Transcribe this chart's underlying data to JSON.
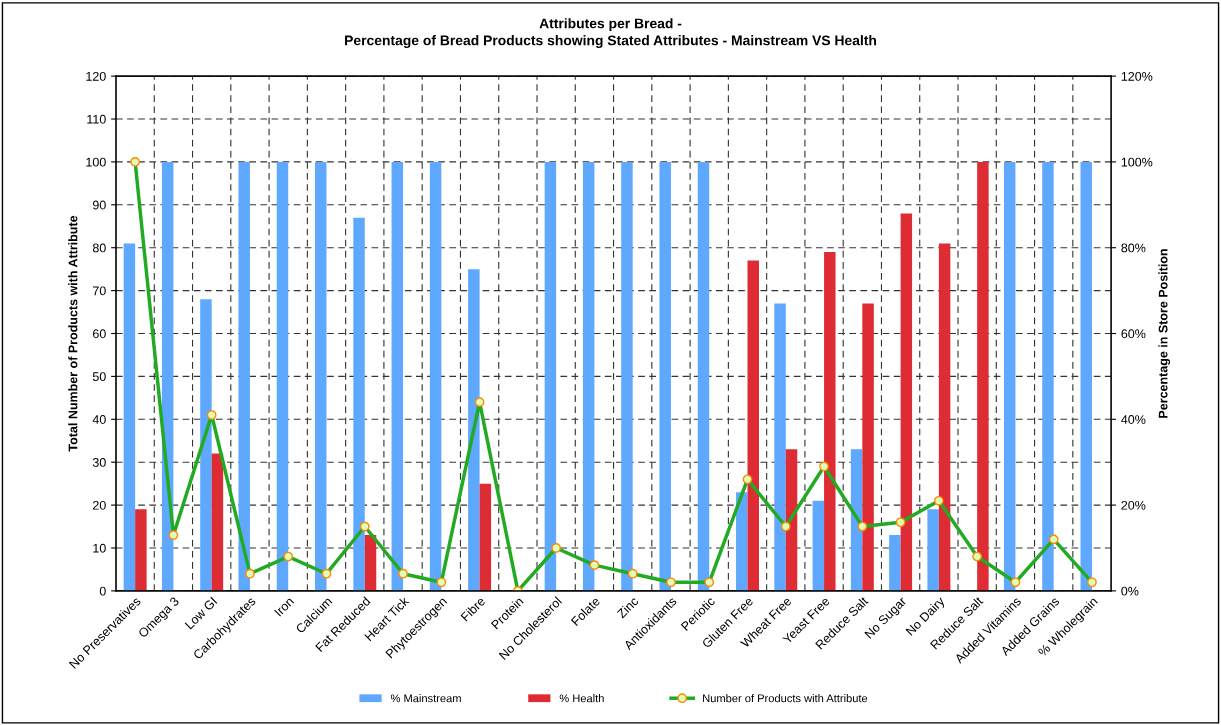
{
  "chart_data": {
    "type": "bar",
    "title": "Attributes per Bread -\nPercentage of Bread Products showing Stated Attributes - Mainstream VS Health",
    "ylabel": "Total Number of Products with Attribute",
    "y2label": "Percentage in Store Position",
    "categories": [
      "No Preservatives",
      "Omega 3",
      "Low GI",
      "Carbohydrates",
      "Iron",
      "Calcium",
      "Fat Reduced",
      "Heart Tick",
      "Phytoestrogen",
      "Fibre",
      "Protein",
      "No Cholesterol",
      "Folate",
      "Zinc",
      "Antioxidants",
      "Periotic",
      "Gluten Free",
      "Wheat Free",
      "Yeast Free",
      "Reduce Salt",
      "No Sugar",
      "No Dairy",
      "Reduce Salt",
      "Added Vitamins",
      "Added Grains",
      "% Wholegrain"
    ],
    "series": [
      {
        "name": "% Mainstream",
        "color": "#5fa8ff",
        "values": [
          81,
          100,
          68,
          100,
          100,
          100,
          87,
          100,
          100,
          75,
          null,
          100,
          100,
          100,
          100,
          100,
          23,
          67,
          21,
          33,
          13,
          19,
          null,
          100,
          100,
          100
        ]
      },
      {
        "name": "% Health",
        "color": "#dd2c33",
        "values": [
          19,
          null,
          32,
          null,
          null,
          null,
          13,
          null,
          null,
          25,
          null,
          null,
          null,
          null,
          null,
          null,
          77,
          33,
          79,
          67,
          88,
          81,
          100,
          null,
          null,
          null
        ]
      },
      {
        "name": "Number of Products with Attribute",
        "type": "line",
        "color": "#22aa22",
        "marker": "circle",
        "values": [
          100,
          13,
          41,
          4,
          8,
          4,
          15,
          4,
          2,
          44,
          0,
          10,
          6,
          4,
          2,
          2,
          26,
          15,
          29,
          15,
          16,
          21,
          8,
          2,
          12,
          2
        ]
      }
    ],
    "ylim": [
      0,
      120
    ],
    "yticks": [
      0,
      10,
      20,
      30,
      40,
      50,
      60,
      70,
      80,
      90,
      100,
      110,
      120
    ],
    "y2lim": [
      0,
      120
    ],
    "y2ticks": [
      {
        "value": 0,
        "label": "0%"
      },
      {
        "value": 20,
        "label": "20%"
      },
      {
        "value": 40,
        "label": "40%"
      },
      {
        "value": 60,
        "label": "60%"
      },
      {
        "value": 80,
        "label": "80%"
      },
      {
        "value": 100,
        "label": "100%"
      },
      {
        "value": 120,
        "label": "120%"
      }
    ],
    "grid": true,
    "legend": "bottom"
  }
}
